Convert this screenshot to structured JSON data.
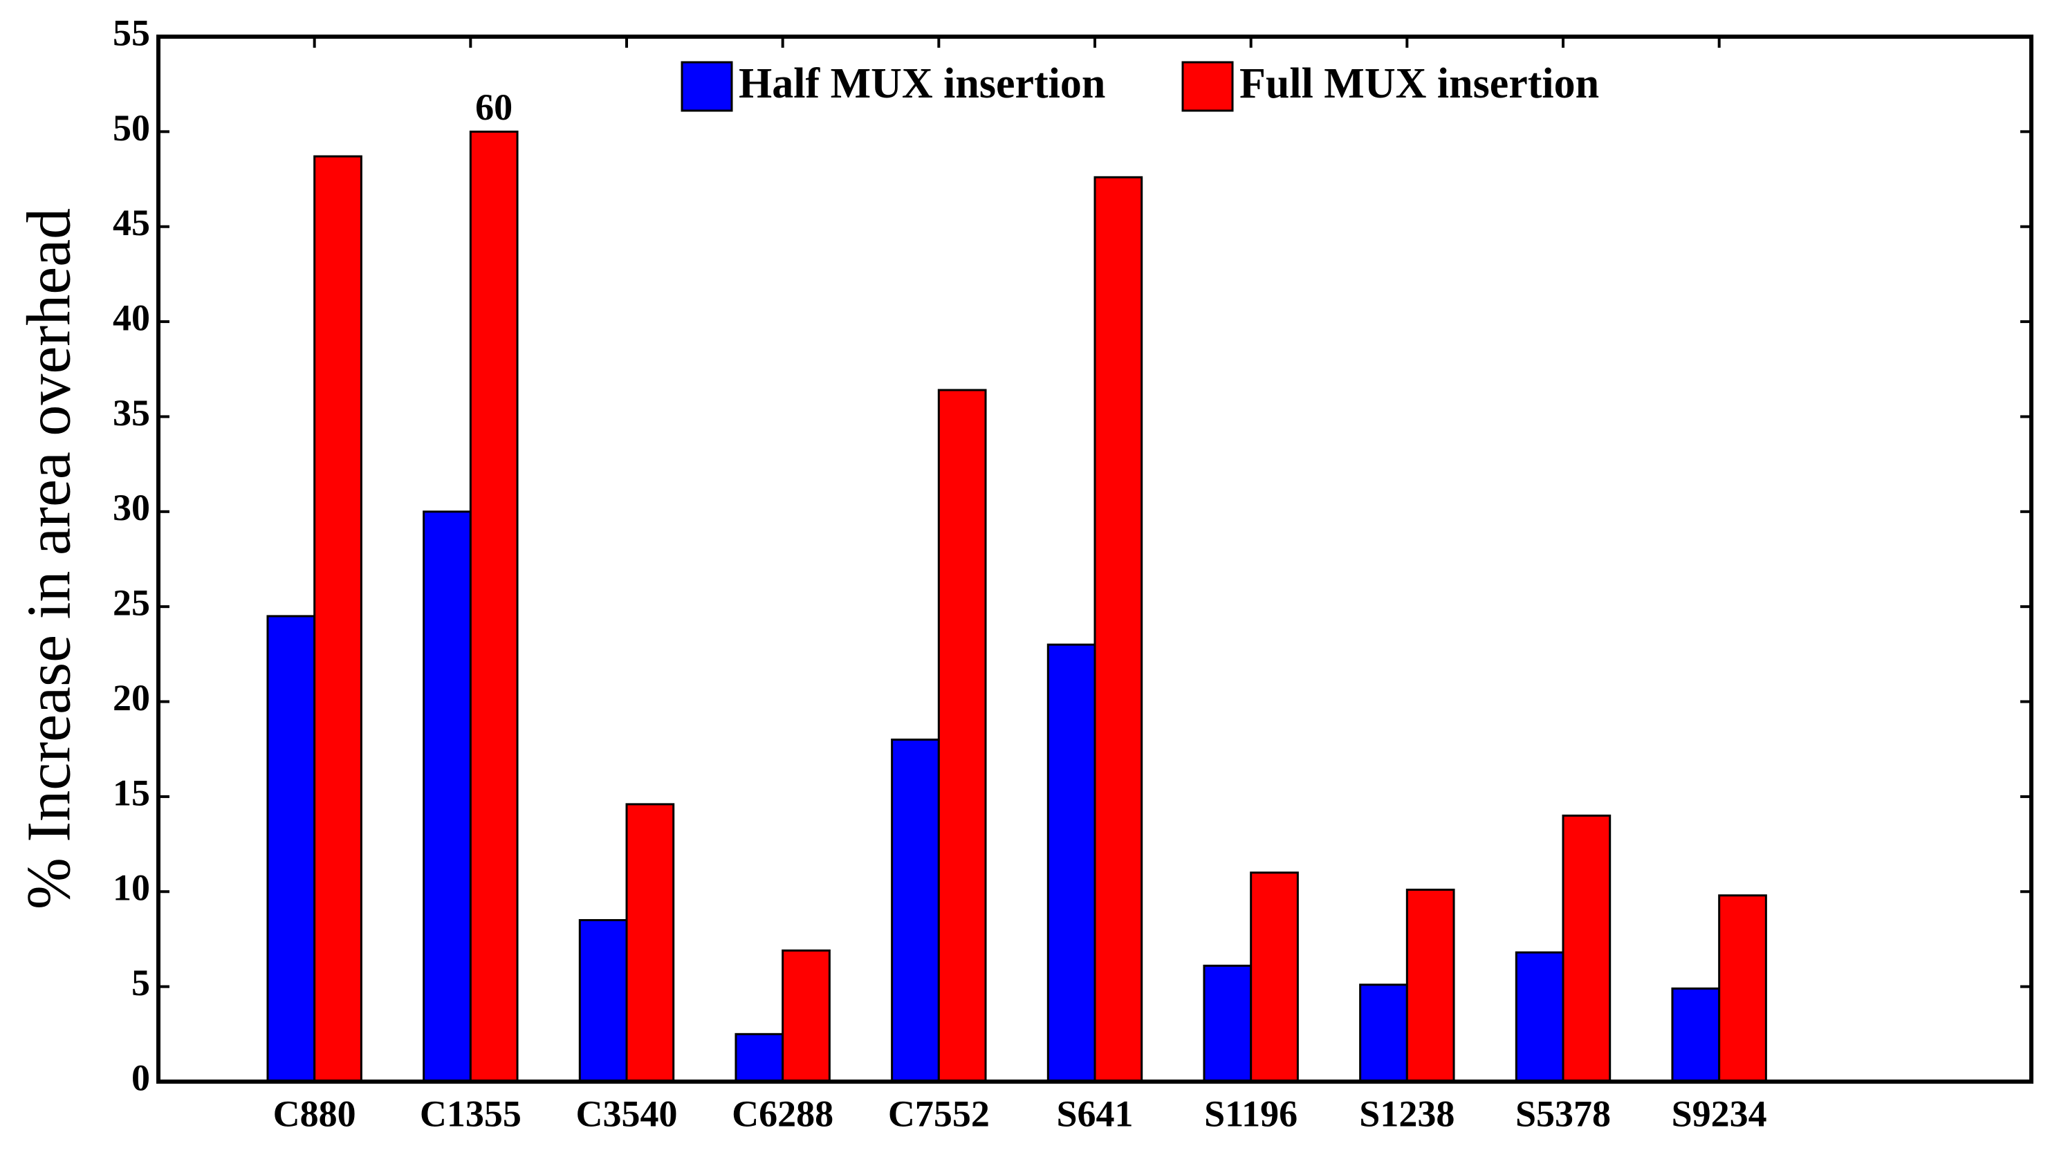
{
  "chart_data": {
    "type": "bar",
    "y_label": "% Increase in area overhead",
    "categories": [
      "C880",
      "C1355",
      "C3540",
      "C6288",
      "C7552",
      "S641",
      "S1196",
      "S1238",
      "S5378",
      "S9234"
    ],
    "series": [
      {
        "name": "Half MUX insertion",
        "color": "#0000ff",
        "values": [
          24.5,
          30,
          8.5,
          2.5,
          18,
          23,
          6.1,
          5.1,
          6.8,
          4.9
        ]
      },
      {
        "name": "Full MUX insertion",
        "color": "#ff0000",
        "values": [
          48.7,
          50,
          14.6,
          6.9,
          36.4,
          47.6,
          11,
          10.1,
          14,
          9.8
        ]
      }
    ],
    "annotations": [
      "60"
    ],
    "ylim": [
      0,
      55
    ],
    "yticks": [
      0,
      5,
      10,
      15,
      20,
      25,
      30,
      35,
      40,
      45,
      50,
      55
    ],
    "xlim": [
      0,
      12
    ],
    "legend": "top"
  }
}
